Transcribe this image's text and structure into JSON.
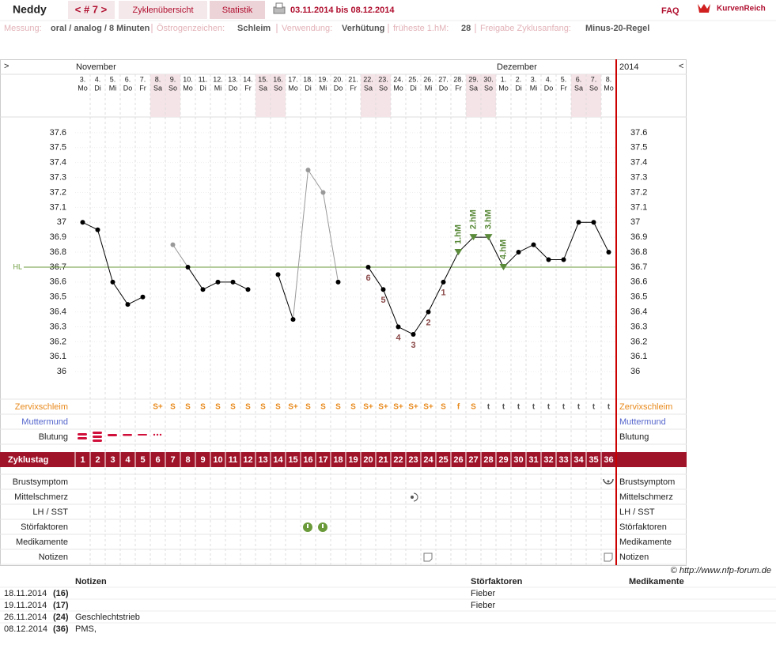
{
  "header": {
    "user": "Neddy",
    "cycle_nav": "< # 7 >",
    "tabs": [
      "Zyklenübersicht",
      "Statistik"
    ],
    "date_range": "03.11.2014 bis 08.12.2014",
    "faq": "FAQ",
    "brand": "KurvenReich"
  },
  "meta": [
    {
      "label": "Messung:",
      "value": "oral / analog / 8 Minuten"
    },
    {
      "label": "Östrogenzeichen:",
      "value": "Schleim"
    },
    {
      "label": "Verwendung:",
      "value": "Verhütung"
    },
    {
      "label": "früheste 1.hM:",
      "value": "28"
    },
    {
      "label": "Freigabe Zyklusanfang:",
      "value": "Minus-20-Regel"
    }
  ],
  "chart_data": {
    "type": "line",
    "nav_left": ">",
    "nav_right": "<",
    "months": [
      "November",
      "Dezember"
    ],
    "year": "2014",
    "categories": [
      "3.",
      "4.",
      "5.",
      "6.",
      "7.",
      "8.",
      "9.",
      "10.",
      "11.",
      "12.",
      "13.",
      "14.",
      "15.",
      "16.",
      "17.",
      "18.",
      "19.",
      "20.",
      "21.",
      "22.",
      "23.",
      "24.",
      "25.",
      "26.",
      "27.",
      "28.",
      "29.",
      "30.",
      "1.",
      "2.",
      "3.",
      "4.",
      "5.",
      "6.",
      "7.",
      "8."
    ],
    "weekdays": [
      "Mo",
      "Di",
      "Mi",
      "Do",
      "Fr",
      "Sa",
      "So",
      "Mo",
      "Di",
      "Mi",
      "Do",
      "Fr",
      "Sa",
      "So",
      "Mo",
      "Di",
      "Mi",
      "Do",
      "Fr",
      "Sa",
      "So",
      "Mo",
      "Di",
      "Mi",
      "Do",
      "Fr",
      "Sa",
      "So",
      "Mo",
      "Di",
      "Mi",
      "Do",
      "Fr",
      "Sa",
      "So",
      "Mo"
    ],
    "ylim": [
      35.8,
      37.7
    ],
    "yticks": [
      36,
      36.1,
      36.2,
      36.3,
      36.4,
      36.5,
      36.6,
      36.7,
      36.8,
      36.9,
      37,
      37.1,
      37.2,
      37.3,
      37.4,
      37.5,
      37.6
    ],
    "grid": true,
    "series": [
      {
        "color": "#000000",
        "values": [
          37,
          36.95,
          36.6,
          36.45,
          36.5,
          null,
          null,
          36.7,
          36.55,
          36.6,
          36.6,
          36.55,
          null,
          36.65,
          36.35,
          null,
          null,
          36.6,
          null,
          36.7,
          36.55,
          36.3,
          36.25,
          36.4,
          36.6,
          36.8,
          36.9,
          36.9,
          36.7,
          36.8,
          36.85,
          36.75,
          36.75,
          37,
          37,
          36.8
        ]
      },
      {
        "color": "#999999",
        "values": [
          null,
          null,
          null,
          null,
          null,
          null,
          36.85,
          null,
          null,
          null,
          null,
          null,
          null,
          null,
          null,
          37.35,
          37.2,
          null,
          null,
          null,
          null,
          null,
          null,
          null,
          null,
          null,
          null,
          null,
          null,
          null,
          null,
          null,
          null,
          null,
          null,
          null
        ]
      }
    ],
    "point_numbers": [
      null,
      null,
      null,
      null,
      null,
      null,
      null,
      null,
      null,
      null,
      null,
      null,
      null,
      null,
      null,
      null,
      null,
      null,
      null,
      "6",
      "5",
      "4",
      "3",
      "2",
      "1",
      null,
      null,
      null,
      null,
      null,
      null,
      null,
      null,
      null,
      null,
      null
    ],
    "point_number_color": "#8b4a4a",
    "hm_labels": [
      null,
      null,
      null,
      null,
      null,
      null,
      null,
      null,
      null,
      null,
      null,
      null,
      null,
      null,
      null,
      null,
      null,
      null,
      null,
      null,
      null,
      null,
      null,
      null,
      null,
      "1.hM",
      "2.hM",
      "3.hM",
      "4.hM",
      null,
      null,
      null,
      null,
      null,
      null,
      null
    ],
    "hm_color": "#5a8a3a",
    "coverline": {
      "value": 36.7,
      "label": "HL",
      "color": "#6a9a3a"
    }
  },
  "rows_top": [
    {
      "label": "Zervixschleim",
      "label_color": "#e8891b",
      "values": [
        null,
        null,
        null,
        null,
        null,
        "S+",
        "S",
        "S",
        "S",
        "S",
        "S",
        "S",
        "S",
        "S",
        "S+",
        "S",
        "S",
        "S",
        "S",
        "S+",
        "S+",
        "S+",
        "S+",
        "S+",
        "S",
        "f",
        "S",
        "t",
        "t",
        "t",
        "t",
        "t",
        "t",
        "t",
        "t",
        "t"
      ],
      "colors": [
        null,
        null,
        null,
        null,
        null,
        "#e8891b",
        "#e8891b",
        "#e8891b",
        "#e8891b",
        "#e8891b",
        "#e8891b",
        "#e8891b",
        "#e8891b",
        "#e8891b",
        "#e8891b",
        "#e8891b",
        "#e8891b",
        "#e8891b",
        "#e8891b",
        "#e8891b",
        "#e8891b",
        "#e8891b",
        "#e8891b",
        "#e8891b",
        "#e8891b",
        "#e8891b",
        "#e8891b",
        "#555555",
        "#555555",
        "#555555",
        "#555555",
        "#555555",
        "#555555",
        "#555555",
        "#555555",
        "#555555"
      ]
    },
    {
      "label": "Muttermund",
      "label_color": "#5566cc"
    },
    {
      "label": "Blutung",
      "label_color": "#222222"
    }
  ],
  "cycle_day": {
    "label": "Zyklustag",
    "values": [
      1,
      2,
      3,
      4,
      5,
      6,
      7,
      8,
      9,
      10,
      11,
      12,
      13,
      14,
      15,
      16,
      17,
      18,
      19,
      20,
      21,
      22,
      23,
      24,
      25,
      26,
      27,
      28,
      29,
      30,
      31,
      32,
      33,
      34,
      35,
      36
    ]
  },
  "rows_bottom": [
    "Brustsymptom",
    "Mittelschmerz",
    "LH / SST",
    "Störfaktoren",
    "Medikamente",
    "Notizen"
  ],
  "credit": "© http://www.nfp-forum.de",
  "notes": {
    "headers": [
      "Notizen",
      "Störfaktoren",
      "Medikamente"
    ],
    "rows": [
      [
        "18.11.2014",
        "(16)",
        null,
        "Fieber",
        null
      ],
      [
        "19.11.2014",
        "(17)",
        null,
        "Fieber",
        null
      ],
      [
        "26.11.2014",
        "(24)",
        "Geschlechtstrieb",
        null,
        null
      ],
      [
        "08.12.2014",
        "(36)",
        "PMS,",
        null,
        null
      ]
    ]
  }
}
